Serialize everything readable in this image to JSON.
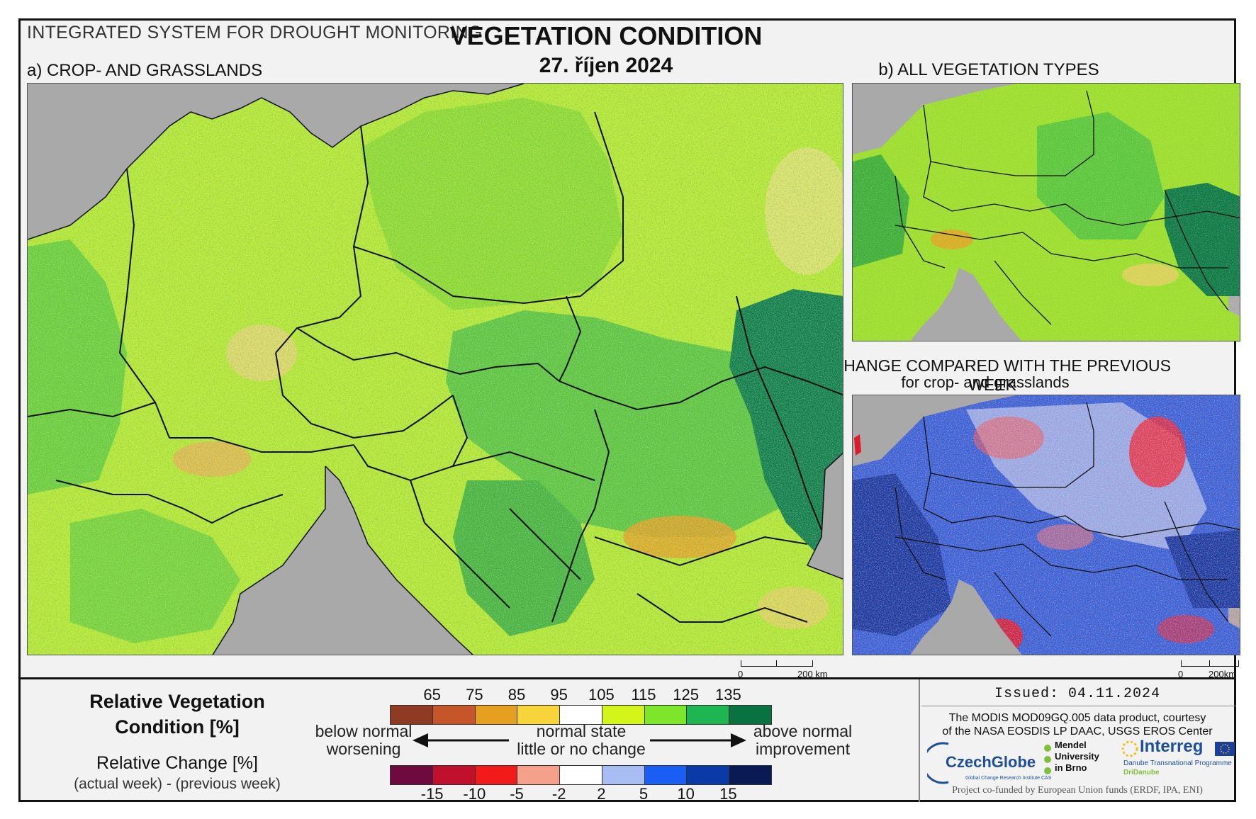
{
  "header": {
    "system": "INTEGRATED SYSTEM FOR DROUGHT MONITORING",
    "title": "VEGETATION CONDITION",
    "date": "27. říjen 2024"
  },
  "panels": {
    "a": {
      "label": "a) CROP- AND GRASSLANDS",
      "scale_zero": "0",
      "scale_label": "200 km"
    },
    "b": {
      "label": "b) ALL VEGETATION TYPES"
    },
    "c": {
      "label": "c) CHANGE COMPARED WITH THE PREVIOUS WEEK",
      "sublabel": "for crop- and grasslands",
      "scale_zero": "0",
      "scale_label": "200km"
    }
  },
  "legend": {
    "rvc_title_line1": "Relative Vegetation",
    "rvc_title_line2": "Condition [%]",
    "rc_title": "Relative Change [%]",
    "rc_sub": "(actual week) - (previous week)",
    "top_ticks": [
      "65",
      "75",
      "85",
      "95",
      "105",
      "115",
      "125",
      "135"
    ],
    "top_colors": [
      "#8f3a22",
      "#c4562a",
      "#e5a020",
      "#f7d43a",
      "#ffffff",
      "#d4f51a",
      "#7ee62a",
      "#1fb552",
      "#0a7140"
    ],
    "bottom_ticks": [
      "-15",
      "-10",
      "-5",
      "-2",
      "2",
      "5",
      "10",
      "15"
    ],
    "bottom_colors": [
      "#6e0a3e",
      "#c0102e",
      "#f21a1a",
      "#f5a08a",
      "#ffffff",
      "#a8bdf2",
      "#1a5ef5",
      "#0a3aa8",
      "#0a1a55"
    ],
    "left_top": "below normal",
    "left_bottom": "worsening",
    "mid_top": "normal state",
    "mid_bottom": "little or no change",
    "right_top": "above normal",
    "right_bottom": "improvement"
  },
  "footer": {
    "issued": "Issued: 04.11.2024",
    "credit_line1": "The MODIS MOD09GQ.005 data product, courtesy",
    "credit_line2": "of the NASA EOSDIS LP DAAC, USGS EROS Center",
    "czechglobe": "CzechGlobe",
    "czechglobe_sub": "Global Change Research Institute CAS",
    "mendel1": "Mendel",
    "mendel2": "University",
    "mendel3": "in Brno",
    "interreg": "Interreg",
    "interreg_sub1": "Danube Transnational Programme",
    "interreg_sub2": "DriDanube",
    "cofunded": "Project co-funded by European Union funds (ERDF, IPA, ENI)"
  }
}
